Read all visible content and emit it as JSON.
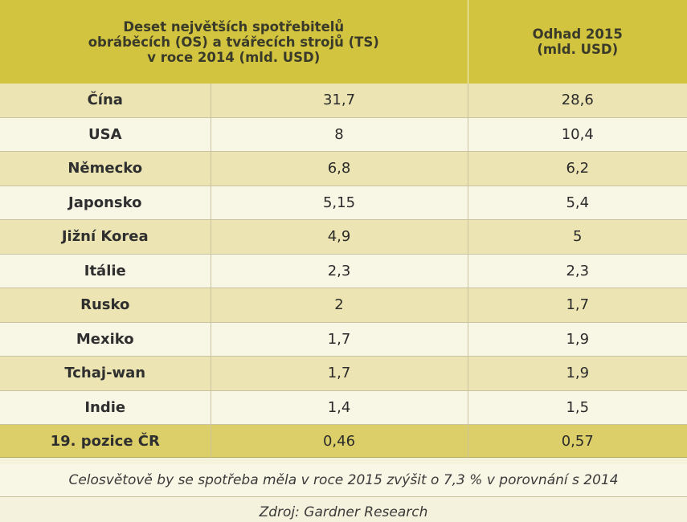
{
  "header": {
    "title_line1": "Deset největších spotřebitelů",
    "title_line2": "obráběcích (OS) a tvářecích strojů (TS)",
    "title_line3": "v roce 2014 (mld. USD)",
    "estimate_line1": "Odhad 2015",
    "estimate_line2": "(mld. USD)"
  },
  "rows": [
    {
      "country": "Čína",
      "v2014": "31,7",
      "v2015": "28,6"
    },
    {
      "country": "USA",
      "v2014": "8",
      "v2015": "10,4"
    },
    {
      "country": "Německo",
      "v2014": "6,8",
      "v2015": "6,2"
    },
    {
      "country": "Japonsko",
      "v2014": "5,15",
      "v2015": "5,4"
    },
    {
      "country": "Jižní Korea",
      "v2014": "4,9",
      "v2015": "5"
    },
    {
      "country": "Itálie",
      "v2014": "2,3",
      "v2015": "2,3"
    },
    {
      "country": "Rusko",
      "v2014": "2",
      "v2015": "1,7"
    },
    {
      "country": "Mexiko",
      "v2014": "1,7",
      "v2015": "1,9"
    },
    {
      "country": "Tchaj-wan",
      "v2014": "1,7",
      "v2015": "1,9"
    },
    {
      "country": "Indie",
      "v2014": "1,4",
      "v2015": "1,5"
    }
  ],
  "cz_row": {
    "country": "19. pozice ČR",
    "v2014": "0,46",
    "v2015": "0,57"
  },
  "footnote": "Celosvětově  by se spotřeba měla v roce 2015 zvýšit o 7,3 % v porovnání s 2014",
  "source": "Zdroj: Gardner Research",
  "colors": {
    "header": "#d2c43f",
    "row_odd": "#ece4b2",
    "row_even": "#f8f6e4",
    "cz_row": "#dccf6a"
  }
}
